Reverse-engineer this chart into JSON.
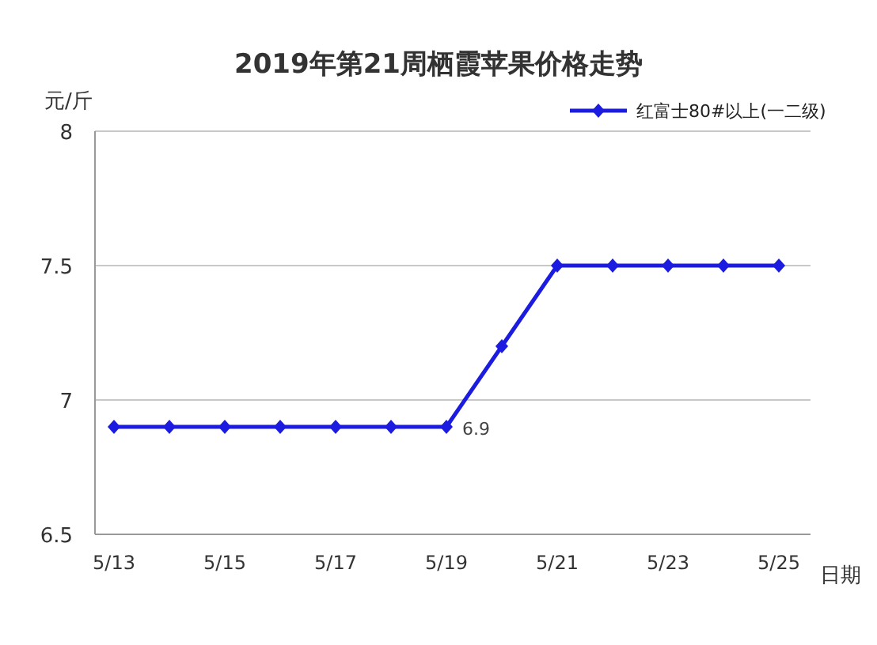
{
  "chart_data": {
    "type": "line",
    "title": "2019年第21周栖霞苹果价格走势",
    "xlabel": "日期",
    "ylabel": "元/斤",
    "categories": [
      "5/13",
      null,
      "5/15",
      null,
      "5/17",
      null,
      "5/19",
      null,
      "5/21",
      null,
      "5/23",
      null,
      "5/25"
    ],
    "series": [
      {
        "name": "红富士80#以上(一二级)",
        "color": "#1c1ce0",
        "values": [
          6.9,
          6.9,
          6.9,
          6.9,
          6.9,
          6.9,
          6.9,
          7.2,
          7.5,
          7.5,
          7.5,
          7.5,
          7.5
        ],
        "value_labels": [
          null,
          null,
          null,
          null,
          null,
          null,
          "6.9",
          null,
          null,
          null,
          null,
          null,
          null
        ]
      }
    ],
    "ylim": [
      6.5,
      8
    ],
    "yticks": [
      6.5,
      7,
      7.5,
      8
    ],
    "grid": "y",
    "legend": "top right",
    "marker": "diamond",
    "line_style": "solid"
  }
}
